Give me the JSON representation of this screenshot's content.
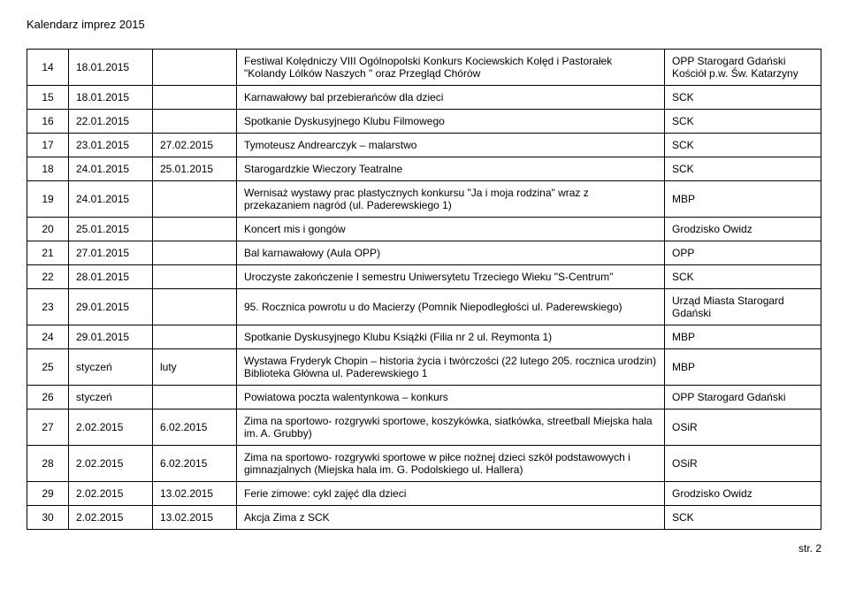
{
  "title": "Kalendarz imprez 2015",
  "footer": "str. 2",
  "rows": [
    {
      "num": "14",
      "d1": "18.01.2015",
      "d2": "",
      "desc": "Festiwal Kolędniczy VIII Ogólnopolski Konkurs Kociewskich Kolęd i Pastorałek \"Kolandy Lólków Naszych \" oraz Przegląd Chórów",
      "loc": "OPP Starogard Gdański Kościół p.w. Św. Katarzyny"
    },
    {
      "num": "15",
      "d1": "18.01.2015",
      "d2": "",
      "desc": "Karnawałowy bal przebierańców dla dzieci",
      "loc": "SCK"
    },
    {
      "num": "16",
      "d1": "22.01.2015",
      "d2": "",
      "desc": "Spotkanie Dyskusyjnego Klubu Filmowego",
      "loc": "SCK"
    },
    {
      "num": "17",
      "d1": "23.01.2015",
      "d2": "27.02.2015",
      "desc": "Tymoteusz Andrearczyk – malarstwo",
      "loc": "SCK"
    },
    {
      "num": "18",
      "d1": "24.01.2015",
      "d2": "25.01.2015",
      "desc": "Starogardzkie Wieczory Teatralne",
      "loc": "SCK"
    },
    {
      "num": "19",
      "d1": "24.01.2015",
      "d2": "",
      "desc": "Wernisaż wystawy prac plastycznych konkursu \"Ja i moja rodzina\" wraz z przekazaniem nagród (ul. Paderewskiego 1)",
      "loc": "MBP"
    },
    {
      "num": "20",
      "d1": "25.01.2015",
      "d2": "",
      "desc": "Koncert mis i gongów",
      "loc": "Grodzisko Owidz"
    },
    {
      "num": "21",
      "d1": "27.01.2015",
      "d2": "",
      "desc": "Bal karnawałowy  (Aula OPP)",
      "loc": "OPP"
    },
    {
      "num": "22",
      "d1": "28.01.2015",
      "d2": "",
      "desc": "Uroczyste zakończenie I semestru Uniwersytetu Trzeciego Wieku \"S-Centrum\"",
      "loc": "SCK"
    },
    {
      "num": "23",
      "d1": "29.01.2015",
      "d2": "",
      "desc": "95. Rocznica powrotu u do Macierzy  (Pomnik Niepodległości ul. Paderewskiego)",
      "loc": "Urząd Miasta Starogard Gdański"
    },
    {
      "num": "24",
      "d1": "29.01.2015",
      "d2": "",
      "desc": "Spotkanie Dyskusyjnego Klubu Książki (Filia nr 2 ul. Reymonta 1)",
      "loc": "MBP"
    },
    {
      "num": "25",
      "d1": "styczeń",
      "d2": "luty",
      "desc": "Wystawa Fryderyk Chopin – historia życia i twórczości (22 lutego 205. rocznica urodzin) Biblioteka Główna ul. Paderewskiego 1",
      "loc": "MBP"
    },
    {
      "num": "26",
      "d1": "styczeń",
      "d2": "",
      "desc": "Powiatowa poczta walentynkowa – konkurs",
      "loc": "OPP Starogard Gdański"
    },
    {
      "num": "27",
      "d1": "2.02.2015",
      "d2": "6.02.2015",
      "desc": "Zima na sportowo- rozgrywki sportowe, koszykówka, siatkówka, streetball Miejska hala im. A. Grubby)",
      "loc": "OSiR"
    },
    {
      "num": "28",
      "d1": "2.02.2015",
      "d2": "6.02.2015",
      "desc": "Zima na sportowo- rozgrywki sportowe w piłce nożnej dzieci szkół podstawowych i gimnazjalnych (Miejska hala im. G. Podolskiego ul. Hallera)",
      "loc": "OSiR"
    },
    {
      "num": "29",
      "d1": "2.02.2015",
      "d2": "13.02.2015",
      "desc": "Ferie zimowe: cykl zajęć dla dzieci",
      "loc": "Grodzisko Owidz"
    },
    {
      "num": "30",
      "d1": "2.02.2015",
      "d2": "13.02.2015",
      "desc": "Akcja Zima z SCK",
      "loc": "SCK"
    }
  ]
}
